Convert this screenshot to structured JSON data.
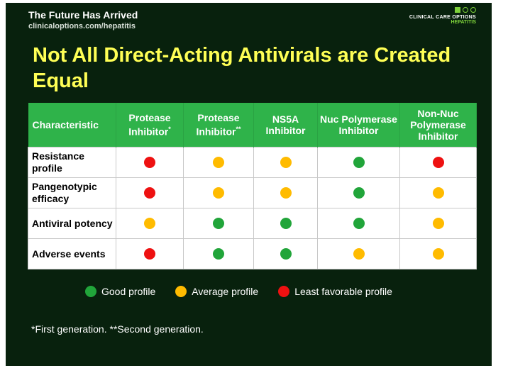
{
  "header": {
    "site_title": "The Future Has Arrived",
    "site_url": "clinicaloptions.com/hepatitis",
    "brand_name": "CLINICAL CARE OPTIONS",
    "brand_sub": "HEPATITIS"
  },
  "title": "Not All Direct-Acting Antivirals are Created Equal",
  "colors": {
    "good": "#21a53a",
    "average": "#ffbb00",
    "least": "#ee1111",
    "header_bg": "#2fb34a",
    "title": "#ffff55",
    "background": "#08210d"
  },
  "table": {
    "columns": [
      {
        "label": "Characteristic",
        "sup": ""
      },
      {
        "label": "Protease Inhibitor",
        "sup": "*"
      },
      {
        "label": "Protease Inhibitor",
        "sup": "**"
      },
      {
        "label": "NS5A Inhibitor",
        "sup": ""
      },
      {
        "label": "Nuc Polymerase Inhibitor",
        "sup": ""
      },
      {
        "label": "Non-Nuc Polymerase Inhibitor",
        "sup": ""
      }
    ],
    "rows": [
      {
        "label": "Resistance profile",
        "ratings": [
          "least",
          "average",
          "average",
          "good",
          "least"
        ]
      },
      {
        "label": "Pangenotypic efficacy",
        "ratings": [
          "least",
          "average",
          "average",
          "good",
          "average"
        ]
      },
      {
        "label": "Antiviral potency",
        "ratings": [
          "average",
          "good",
          "good",
          "good",
          "average"
        ]
      },
      {
        "label": "Adverse events",
        "ratings": [
          "least",
          "good",
          "good",
          "average",
          "average"
        ]
      }
    ]
  },
  "legend": [
    {
      "key": "good",
      "label": "Good profile"
    },
    {
      "key": "average",
      "label": "Average profile"
    },
    {
      "key": "least",
      "label": "Least favorable profile"
    }
  ],
  "footnote": "*First generation. **Second generation."
}
